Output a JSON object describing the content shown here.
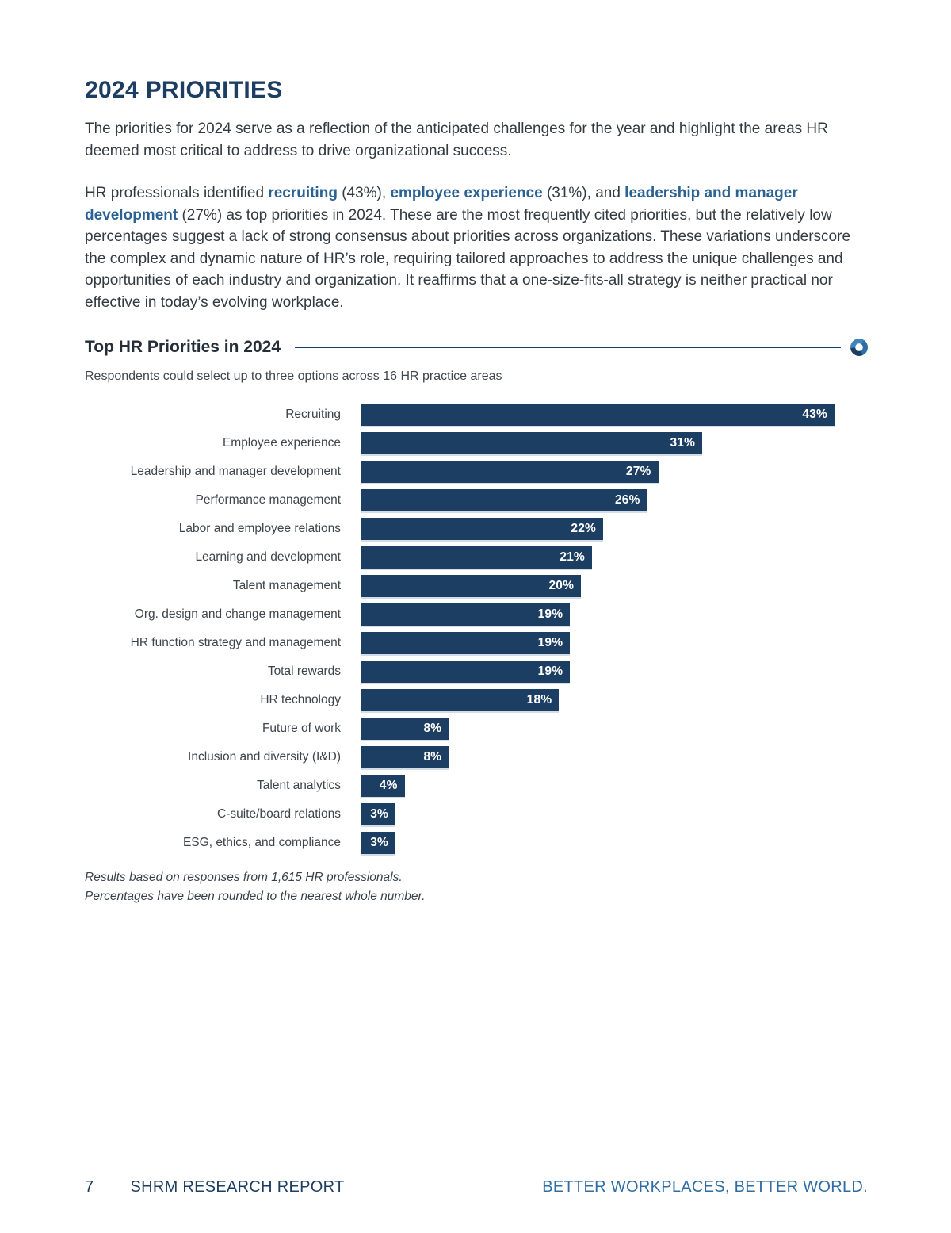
{
  "heading": "2024 PRIORITIES",
  "intro": {
    "p1": "The priorities for 2024 serve as a reflection of the anticipated challenges for the year and highlight the areas HR deemed most critical to address to drive organizational success.",
    "p2": {
      "s1": "HR professionals identified ",
      "s2": "recruiting",
      "s3": " (43%), ",
      "s4": "employee experience",
      "s5": " (31%), and ",
      "s6": "leadership and manager development",
      "s7": " (27%) as top priorities in 2024. These are the most frequently cited priorities, but the relatively low percentages suggest a lack of strong consensus about priorities across organizations. These variations underscore the complex and dynamic nature of HR’s role, requiring tailored approaches to address the unique challenges and opportunities of each industry and organization. It reaffirms that a one-size-fits-all strategy is neither practical nor effective in today’s evolving workplace."
    }
  },
  "chart_data": {
    "type": "bar",
    "orientation": "horizontal",
    "title": "Top HR Priorities in 2024",
    "subtitle": "Respondents could select up to three options across 16 HR practice areas",
    "categories": [
      "Recruiting",
      "Employee experience",
      "Leadership and manager development",
      "Performance management",
      "Labor and employee relations",
      "Learning and development",
      "Talent management",
      "Org. design and change management",
      "HR function strategy and management",
      "Total rewards",
      "HR technology",
      "Future of work",
      "Inclusion and diversity (I&D)",
      "Talent analytics",
      "C-suite/board relations",
      "ESG, ethics, and compliance"
    ],
    "values": [
      43,
      31,
      27,
      26,
      22,
      21,
      20,
      19,
      19,
      19,
      18,
      8,
      8,
      4,
      3,
      3
    ],
    "value_labels": [
      "43%",
      "31%",
      "27%",
      "26%",
      "22%",
      "21%",
      "20%",
      "19%",
      "19%",
      "19%",
      "18%",
      "8%",
      "8%",
      "4%",
      "3%",
      "3%"
    ],
    "xlim": [
      0,
      46
    ],
    "grid": false,
    "legend": false,
    "bar_color": "#1d3e63",
    "value_label_color": "#ffffff"
  },
  "chart_notes": {
    "footnote_line1": "Results based on responses from 1,615 HR professionals.",
    "footnote_line2": "Percentages have been rounded to the nearest whole number."
  },
  "footer": {
    "page_number": "7",
    "report_name": "SHRM RESEARCH REPORT",
    "tagline": "BETTER WORKPLACES, BETTER WORLD."
  },
  "colors": {
    "brand_navy": "#1d3e63",
    "accent_blue": "#2e6da4",
    "highlight_text_blue": "#2b6295",
    "body_text": "#333b42",
    "bar": "#1d3e63",
    "bar_value_text": "#ffffff"
  }
}
